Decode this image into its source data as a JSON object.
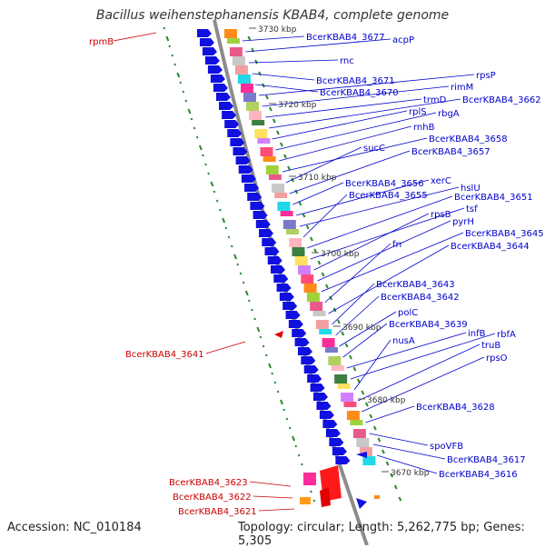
{
  "title": "Bacillus weihenstephanensis KBAB4, complete genome",
  "footer": {
    "accession": "Accession: NC_010184",
    "topology": "Topology: circular; Length: 5,262,775 bp; Genes: 5,305"
  },
  "colors": {
    "forward_label": "#0000cc",
    "reverse_label": "#cc0000",
    "backbone": "#8c8c8c",
    "gc_skew_marks": "#2a8a2a"
  },
  "scale_marks": [
    "3730 kbp",
    "3720 kbp",
    "3710 kbp",
    "3700 kbp",
    "3690 kbp",
    "3680 kbp",
    "3670 kbp"
  ],
  "forward_labels": [
    "BcerKBAB4_3677",
    "acpP",
    "rnc",
    "BcerKBAB4_3671",
    "BcerKBAB4_3670",
    "rpsP",
    "rimM",
    "trmD",
    "BcerKBAB4_3662",
    "rplS",
    "rbgA",
    "rnhB",
    "BcerKBAB4_3658",
    "sucC",
    "BcerKBAB4_3657",
    "BcerKBAB4_3656",
    "xerC",
    "hslU",
    "BcerKBAB4_3655",
    "BcerKBAB4_3651",
    "tsf",
    "rpsB",
    "pyrH",
    "BcerKBAB4_3645",
    "frr",
    "BcerKBAB4_3644",
    "BcerKBAB4_3643",
    "BcerKBAB4_3642",
    "polC",
    "BcerKBAB4_3639",
    "infB",
    "rbfA",
    "nusA",
    "truB",
    "rpsO",
    "BcerKBAB4_3628",
    "spoVFB",
    "BcerKBAB4_3617",
    "BcerKBAB4_3616"
  ],
  "reverse_labels": [
    "rpmB",
    "BcerKBAB4_3641",
    "BcerKBAB4_3623",
    "BcerKBAB4_3622",
    "BcerKBAB4_3621"
  ]
}
